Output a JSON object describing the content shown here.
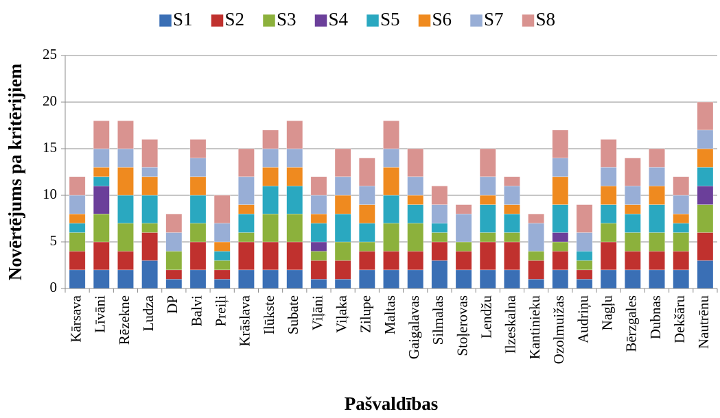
{
  "chart_data": {
    "type": "stacked-bar",
    "x_label": "Pašvaldības",
    "y_label": "Novērtējums pa kritērijiem",
    "categories": [
      "Kārsava",
      "Līvāni",
      "Rēzekne",
      "Ludza",
      "DP",
      "Balvi",
      "Preiļi",
      "Krāslava",
      "Ilūkste",
      "Subate",
      "Viļāni",
      "Viļaka",
      "Zilupe",
      "Maltas",
      "Gaigalavas",
      "Silmalas",
      "Stoļerovas",
      "Lendžu",
      "Ilzeskalna",
      "Kantinieku",
      "Ozolmuižas",
      "Audriņu",
      "Nagļu",
      "Bērzgales",
      "Dubnas",
      "Dekšāru",
      "Nautrēnu"
    ],
    "series": [
      {
        "name": "S1",
        "color": "#3a6fb5",
        "values": [
          2,
          2,
          2,
          3,
          1,
          2,
          1,
          2,
          2,
          2,
          1,
          1,
          2,
          2,
          2,
          3,
          2,
          2,
          2,
          1,
          2,
          1,
          2,
          2,
          2,
          2,
          3
        ]
      },
      {
        "name": "S2",
        "color": "#c0312e",
        "values": [
          2,
          3,
          2,
          3,
          1,
          3,
          1,
          3,
          3,
          3,
          2,
          2,
          2,
          2,
          2,
          2,
          2,
          3,
          3,
          2,
          2,
          1,
          3,
          2,
          2,
          2,
          3
        ]
      },
      {
        "name": "S3",
        "color": "#8cb13c",
        "values": [
          2,
          3,
          3,
          1,
          2,
          2,
          1,
          1,
          3,
          3,
          1,
          2,
          1,
          3,
          3,
          1,
          1,
          1,
          1,
          1,
          1,
          1,
          2,
          2,
          2,
          2,
          3
        ]
      },
      {
        "name": "S4",
        "color": "#6b3f9a",
        "values": [
          0,
          3,
          0,
          0,
          0,
          0,
          0,
          0,
          0,
          0,
          1,
          0,
          0,
          0,
          0,
          0,
          0,
          0,
          0,
          0,
          1,
          0,
          0,
          0,
          0,
          0,
          2
        ]
      },
      {
        "name": "S5",
        "color": "#2aa8c0",
        "values": [
          1,
          1,
          3,
          3,
          0,
          3,
          1,
          2,
          3,
          3,
          2,
          3,
          2,
          3,
          2,
          1,
          0,
          3,
          2,
          0,
          3,
          1,
          2,
          2,
          3,
          1,
          2
        ]
      },
      {
        "name": "S6",
        "color": "#ef8a1f",
        "values": [
          1,
          1,
          3,
          2,
          0,
          2,
          1,
          1,
          2,
          2,
          1,
          2,
          2,
          3,
          1,
          0,
          0,
          1,
          1,
          0,
          3,
          0,
          2,
          1,
          2,
          1,
          2
        ]
      },
      {
        "name": "S7",
        "color": "#98aed6",
        "values": [
          2,
          2,
          2,
          1,
          2,
          2,
          2,
          3,
          2,
          2,
          2,
          2,
          2,
          2,
          2,
          2,
          3,
          2,
          2,
          3,
          2,
          2,
          2,
          2,
          2,
          2,
          2
        ]
      },
      {
        "name": "S8",
        "color": "#d99390",
        "values": [
          2,
          3,
          3,
          3,
          2,
          2,
          3,
          3,
          2,
          3,
          2,
          3,
          3,
          3,
          3,
          2,
          1,
          3,
          1,
          1,
          3,
          3,
          3,
          3,
          2,
          2,
          3
        ]
      }
    ],
    "ylim": [
      0,
      25
    ],
    "yticks": [
      0,
      5,
      10,
      15,
      20,
      25
    ],
    "grid": true,
    "legend": "top"
  }
}
